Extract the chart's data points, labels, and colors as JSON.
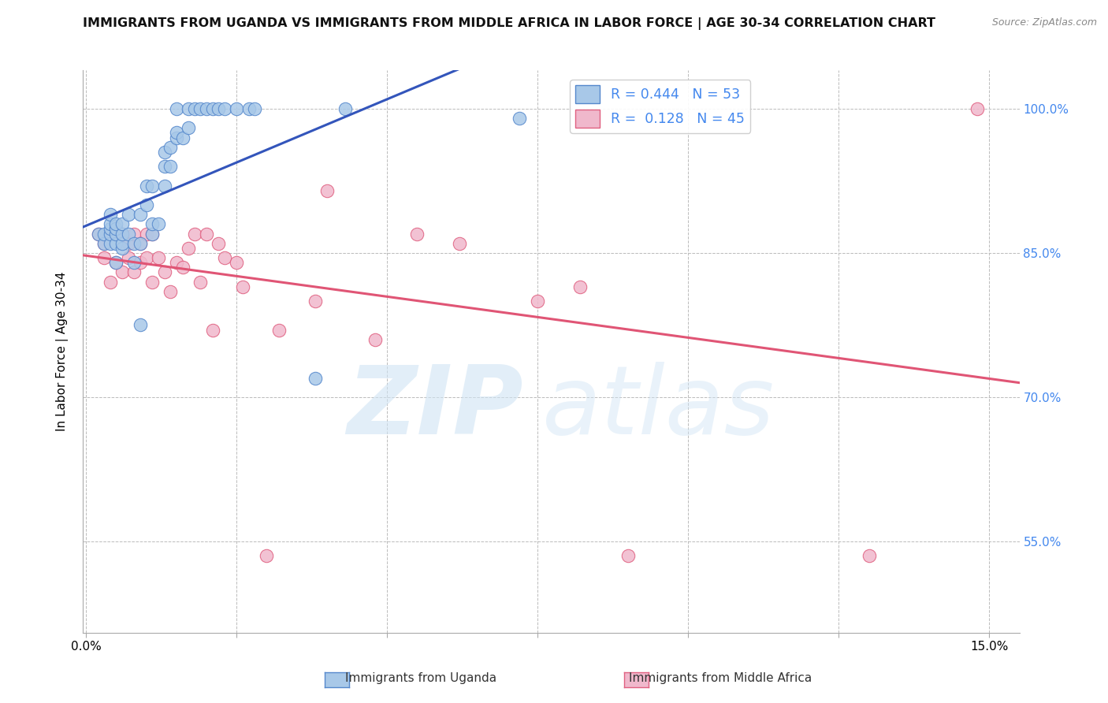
{
  "title": "IMMIGRANTS FROM UGANDA VS IMMIGRANTS FROM MIDDLE AFRICA IN LABOR FORCE | AGE 30-34 CORRELATION CHART",
  "source": "Source: ZipAtlas.com",
  "ylabel": "In Labor Force | Age 30-34",
  "yticks_labels": [
    "55.0%",
    "70.0%",
    "85.0%",
    "100.0%"
  ],
  "ytick_vals": [
    0.55,
    0.7,
    0.85,
    1.0
  ],
  "ylim": [
    0.455,
    1.04
  ],
  "xlim": [
    -0.0005,
    0.155
  ],
  "xtick_vals": [
    0.0,
    0.025,
    0.05,
    0.075,
    0.1,
    0.125,
    0.15
  ],
  "xtick_labels": [
    "0.0%",
    "",
    "",
    "",
    "",
    "",
    "15.0%"
  ],
  "legend_r1": "R = 0.444",
  "legend_n1": "N = 53",
  "legend_r2": "R =  0.128",
  "legend_n2": "N = 45",
  "color_uganda_fill": "#a8c8e8",
  "color_uganda_edge": "#5588cc",
  "color_middle_fill": "#f0b8cc",
  "color_middle_edge": "#e06080",
  "color_line_uganda": "#3355bb",
  "color_line_middle": "#e05575",
  "color_right_axis": "#4488ee",
  "title_fontsize": 11.5,
  "source_fontsize": 9,
  "uganda_x": [
    0.002,
    0.003,
    0.003,
    0.004,
    0.004,
    0.004,
    0.004,
    0.004,
    0.005,
    0.005,
    0.005,
    0.005,
    0.005,
    0.006,
    0.006,
    0.006,
    0.006,
    0.007,
    0.007,
    0.008,
    0.008,
    0.009,
    0.009,
    0.009,
    0.01,
    0.01,
    0.011,
    0.011,
    0.011,
    0.012,
    0.013,
    0.013,
    0.013,
    0.014,
    0.014,
    0.015,
    0.015,
    0.015,
    0.016,
    0.017,
    0.017,
    0.018,
    0.019,
    0.02,
    0.021,
    0.022,
    0.023,
    0.025,
    0.027,
    0.028,
    0.038,
    0.043,
    0.072
  ],
  "uganda_y": [
    0.87,
    0.86,
    0.87,
    0.86,
    0.87,
    0.875,
    0.88,
    0.89,
    0.84,
    0.86,
    0.87,
    0.875,
    0.88,
    0.855,
    0.86,
    0.87,
    0.88,
    0.87,
    0.89,
    0.84,
    0.86,
    0.775,
    0.86,
    0.89,
    0.9,
    0.92,
    0.87,
    0.88,
    0.92,
    0.88,
    0.92,
    0.94,
    0.955,
    0.94,
    0.96,
    0.97,
    0.975,
    1.0,
    0.97,
    0.98,
    1.0,
    1.0,
    1.0,
    1.0,
    1.0,
    1.0,
    1.0,
    1.0,
    1.0,
    1.0,
    0.72,
    1.0,
    0.99
  ],
  "middle_x": [
    0.002,
    0.003,
    0.003,
    0.004,
    0.004,
    0.005,
    0.005,
    0.006,
    0.006,
    0.007,
    0.007,
    0.008,
    0.008,
    0.009,
    0.009,
    0.01,
    0.01,
    0.011,
    0.011,
    0.012,
    0.013,
    0.014,
    0.015,
    0.016,
    0.017,
    0.018,
    0.019,
    0.02,
    0.021,
    0.022,
    0.023,
    0.025,
    0.026,
    0.03,
    0.032,
    0.038,
    0.04,
    0.048,
    0.055,
    0.062,
    0.075,
    0.082,
    0.09,
    0.13,
    0.148
  ],
  "middle_y": [
    0.87,
    0.845,
    0.86,
    0.82,
    0.87,
    0.84,
    0.87,
    0.83,
    0.87,
    0.845,
    0.86,
    0.83,
    0.87,
    0.84,
    0.86,
    0.845,
    0.87,
    0.82,
    0.87,
    0.845,
    0.83,
    0.81,
    0.84,
    0.835,
    0.855,
    0.87,
    0.82,
    0.87,
    0.77,
    0.86,
    0.845,
    0.84,
    0.815,
    0.535,
    0.77,
    0.8,
    0.915,
    0.76,
    0.87,
    0.86,
    0.8,
    0.815,
    0.535,
    0.535,
    1.0
  ],
  "regression_uganda_x0": 0.0,
  "regression_uganda_x1": 0.155,
  "regression_middle_x0": 0.0,
  "regression_middle_x1": 0.155
}
